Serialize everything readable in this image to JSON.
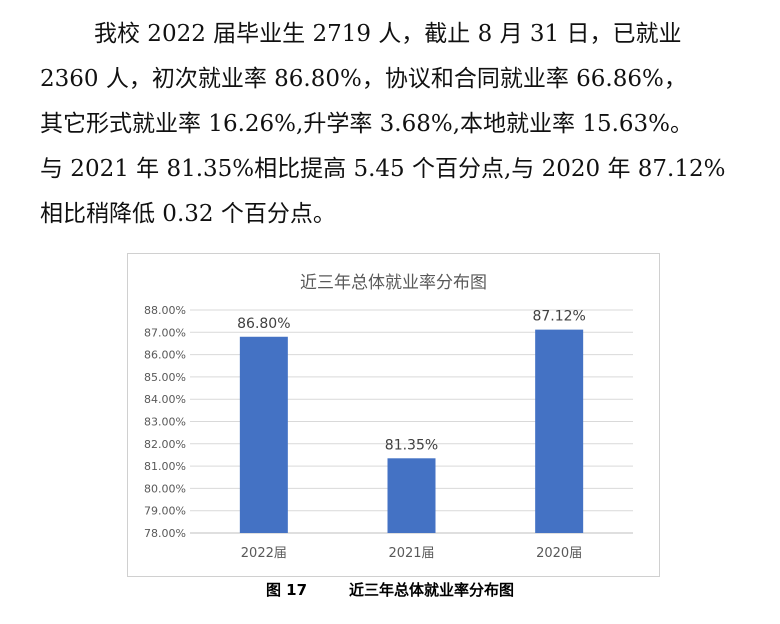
{
  "paragraph": {
    "lines": [
      "我校 2022 届毕业生 2719 人，截止 8 月 31 日，已就业",
      "2360 人，初次就业率 86.80%，协议和合同就业率 66.86%，",
      "其它形式就业率 16.26%,升学率 3.68%,本地就业率 15.63%。",
      "与 2021 年 81.35%相比提高 5.45 个百分点,与 2020 年 87.12%",
      "相比稍降低 0.32 个百分点。"
    ]
  },
  "chart_data": {
    "type": "bar",
    "title": "近三年总体就业率分布图",
    "categories": [
      "2022届",
      "2021届",
      "2020届"
    ],
    "values": [
      86.8,
      81.35,
      87.12
    ],
    "data_labels": [
      "86.80%",
      "81.35%",
      "87.12%"
    ],
    "ylim": [
      78.0,
      88.0
    ],
    "y_ticks": [
      "78.00%",
      "79.00%",
      "80.00%",
      "81.00%",
      "82.00%",
      "83.00%",
      "84.00%",
      "85.00%",
      "86.00%",
      "87.00%",
      "88.00%"
    ],
    "xlabel": "",
    "ylabel": "",
    "grid": true,
    "legend": "none",
    "bar_color": "#4472c4"
  },
  "caption": {
    "number": "图 17",
    "text": "近三年总体就业率分布图"
  }
}
